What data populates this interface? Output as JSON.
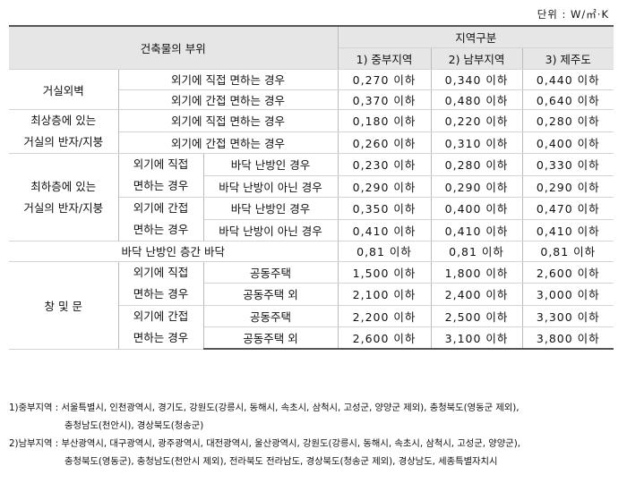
{
  "unit": "단위 : W/㎡·K",
  "header": {
    "part": "건축물의 부위",
    "region_group": "지역구분",
    "regions": [
      "1) 중부지역",
      "2) 남부지역",
      "3) 제주도"
    ]
  },
  "rows": {
    "wall": {
      "label": "거실외벽",
      "direct": "외기에 직접 면하는 경우",
      "indirect": "외기에 간접 면하는 경우",
      "direct_vals": [
        "0,270 이하",
        "0,340 이하",
        "0,440 이하"
      ],
      "indirect_vals": [
        "0,370 이하",
        "0,480 이하",
        "0,640 이하"
      ]
    },
    "roof": {
      "label_line1": "최상층에 있는",
      "label_line2": "거실의 반자/지붕",
      "direct": "외기에 직접 면하는 경우",
      "indirect": "외기에 간접 면하는 경우",
      "direct_vals": [
        "0,180 이하",
        "0,220 이하",
        "0,280 이하"
      ],
      "indirect_vals": [
        "0,260 이하",
        "0,310 이하",
        "0,400 이하"
      ]
    },
    "floor": {
      "label_line1": "최하층에 있는",
      "label_line2": "거실의 반자/지붕",
      "direct_line1": "외기에 직접",
      "direct_line2": "면하는 경우",
      "indirect_line1": "외기에 간접",
      "indirect_line2": "면하는 경우",
      "heated": "바닥 난방인 경우",
      "not_heated": "바닥 난방이 아닌 경우",
      "direct_heated_vals": [
        "0,230 이하",
        "0,280 이하",
        "0,330 이하"
      ],
      "direct_not_heated_vals": [
        "0,290 이하",
        "0,290 이하",
        "0,290 이하"
      ],
      "indirect_heated_vals": [
        "0,350 이하",
        "0,400 이하",
        "0,470 이하"
      ],
      "indirect_not_heated_vals": [
        "0,410 이하",
        "0,410 이하",
        "0,410 이하"
      ]
    },
    "interfloor": {
      "label": "바닥 난방인 층간 바닥",
      "vals": [
        "0,81 이하",
        "0,81 이하",
        "0,81 이하"
      ]
    },
    "windows": {
      "label": "창 및 문",
      "direct_line1": "외기에 직접",
      "direct_line2": "면하는 경우",
      "indirect_line1": "외기에 간접",
      "indirect_line2": "면하는 경우",
      "apartment": "공동주택",
      "non_apartment": "공동주택 외",
      "direct_apartment_vals": [
        "1,500 이하",
        "1,800 이하",
        "2,600 이하"
      ],
      "direct_non_apartment_vals": [
        "2,100 이하",
        "2,400 이하",
        "3,000 이하"
      ],
      "indirect_apartment_vals": [
        "2,200 이하",
        "2,500 이하",
        "3,300 이하"
      ],
      "indirect_non_apartment_vals": [
        "2,600 이하",
        "3,100 이하",
        "3,800 이하"
      ]
    }
  },
  "notes": {
    "central_line1": "1)중부지역 : 서울특별시, 인천광역시, 경기도, 강원도(강릉시, 동해시, 속초시, 삼척시, 고성군, 양양군 제외), 충청북도(영동군 제외),",
    "central_line2": "충청남도(천안시), 경상북도(청송군)",
    "southern_line1": "2)남부지역 : 부산광역시, 대구광역시, 광주광역시, 대전광역시, 울산광역시, 강원도(강릉시, 동해시, 속초시, 삼척시, 고성군, 양양군),",
    "southern_line2": "충청북도(영동군), 충청남도(천안시 제외), 전라북도 전라남도, 경상북도(청송군 제외), 경상남도, 세종특별자치시"
  }
}
